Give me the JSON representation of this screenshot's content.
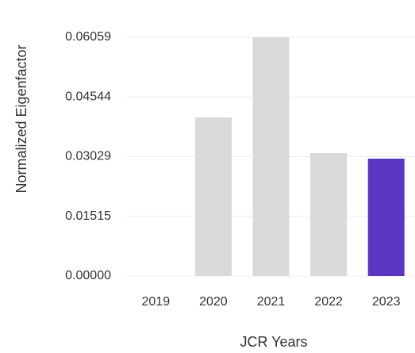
{
  "chart_data": {
    "type": "bar",
    "y_label": "Normalized Eigenfactor",
    "x_label": "JCR Years",
    "categories": [
      "2019",
      "2020",
      "2021",
      "2022",
      "2023"
    ],
    "values": [
      null,
      0.04026,
      0.06059,
      0.0312,
      0.02979
    ],
    "colors": [
      "#d9d9d9",
      "#d9d9d9",
      "#d9d9d9",
      "#d9d9d9",
      "#5c35c0"
    ],
    "ylim": [
      0,
      0.06059
    ],
    "yticks": [
      {
        "value": 0,
        "label": "0.00000"
      },
      0.01515,
      0.03029,
      0.04544,
      0.06059
    ],
    "grid": true
  }
}
